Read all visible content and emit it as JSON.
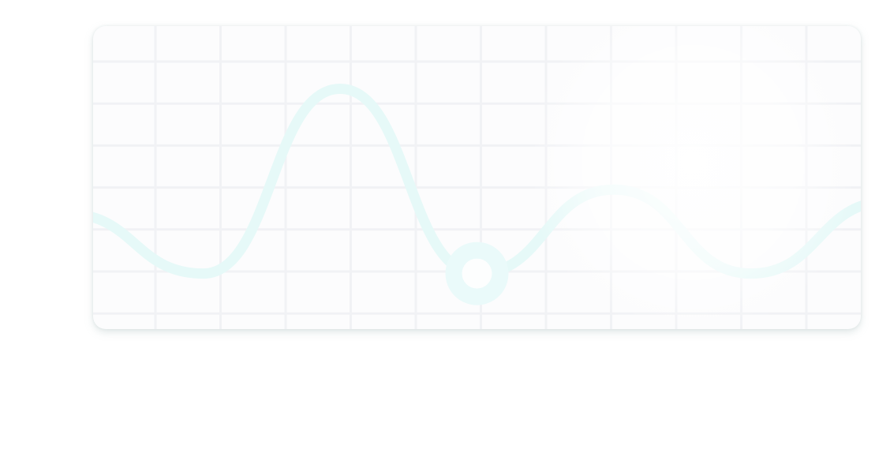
{
  "widget": {
    "type": "decorative-line-chart-card",
    "colors": {
      "card_background": "#fcfcfd",
      "grid_line": "#f1f2f5",
      "line": "#e6f9f8",
      "marker_ring": "#eafafa",
      "marker_center": "#fdfefe"
    },
    "grid": true,
    "highlighted_point_index": 3
  },
  "chart_data": {
    "type": "line",
    "title": "",
    "xlabel": "",
    "ylabel": "",
    "grid": true,
    "xlim": [
      0,
      12
    ],
    "ylim": [
      0,
      1
    ],
    "series": [
      {
        "points": [
          [
            0,
            0.35
          ],
          [
            2,
            0.1
          ],
          [
            4,
            0.87
          ],
          [
            6,
            0.1
          ],
          [
            8,
            0.45
          ],
          [
            10,
            0.1
          ],
          [
            12,
            0.4
          ]
        ]
      }
    ]
  }
}
